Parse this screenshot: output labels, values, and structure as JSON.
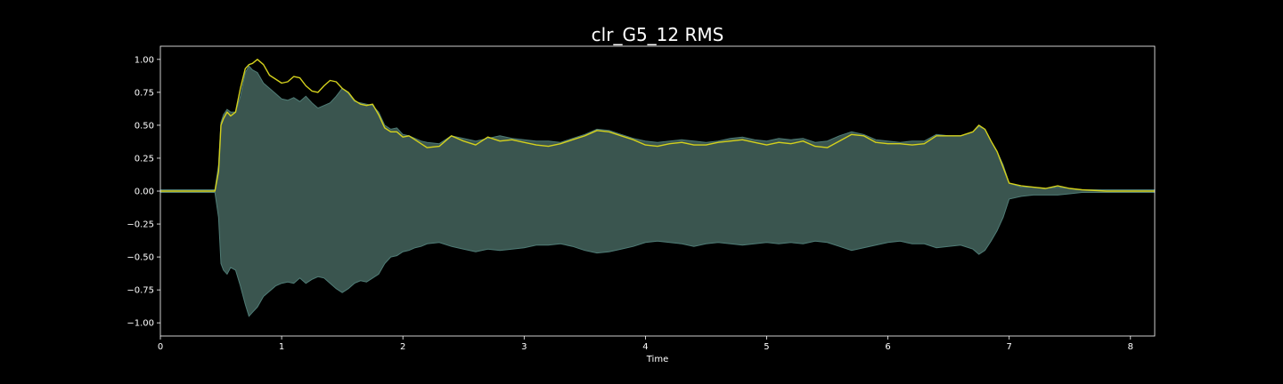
{
  "chart_data": {
    "type": "area",
    "title": "clr_G5_12 RMS",
    "xlabel": "Time",
    "ylabel": "",
    "xlim": [
      0,
      8.2
    ],
    "ylim": [
      -1.1,
      1.1
    ],
    "x_ticks": [
      "0",
      "1",
      "2",
      "3",
      "4",
      "5",
      "6",
      "7",
      "8"
    ],
    "y_ticks": [
      "1.00",
      "0.75",
      "0.50",
      "0.25",
      "0.00",
      "−0.25",
      "−0.50",
      "−0.75",
      "−1.00"
    ],
    "grid": false,
    "legend": "none",
    "colors": {
      "background": "#000000",
      "waveform": "#3a554f",
      "waveform_edge": "#4f7c76",
      "rms": "#d4d11c",
      "axes": "#ffffff",
      "text": "#ffffff"
    },
    "series": [
      {
        "kind": "waveform-envelope",
        "x": [
          0,
          0.45,
          0.48,
          0.5,
          0.52,
          0.55,
          0.58,
          0.62,
          0.66,
          0.7,
          0.73,
          0.76,
          0.8,
          0.85,
          0.9,
          0.95,
          1.0,
          1.05,
          1.1,
          1.15,
          1.2,
          1.25,
          1.3,
          1.35,
          1.4,
          1.45,
          1.5,
          1.55,
          1.6,
          1.65,
          1.7,
          1.75,
          1.8,
          1.85,
          1.9,
          1.95,
          2.0,
          2.05,
          2.1,
          2.15,
          2.2,
          2.3,
          2.4,
          2.5,
          2.6,
          2.7,
          2.8,
          2.9,
          3.0,
          3.1,
          3.2,
          3.3,
          3.4,
          3.5,
          3.6,
          3.7,
          3.8,
          3.9,
          4.0,
          4.1,
          4.2,
          4.3,
          4.4,
          4.5,
          4.6,
          4.7,
          4.8,
          4.9,
          5.0,
          5.1,
          5.2,
          5.3,
          5.4,
          5.5,
          5.6,
          5.7,
          5.8,
          5.9,
          6.0,
          6.1,
          6.2,
          6.3,
          6.4,
          6.5,
          6.6,
          6.7,
          6.75,
          6.8,
          6.85,
          6.9,
          6.95,
          7.0,
          7.1,
          7.2,
          7.3,
          7.4,
          7.5,
          7.6,
          7.8,
          8.0,
          8.2
        ],
        "upper": [
          0.01,
          0.01,
          0.2,
          0.52,
          0.58,
          0.62,
          0.6,
          0.6,
          0.72,
          0.9,
          0.95,
          0.92,
          0.9,
          0.82,
          0.78,
          0.74,
          0.7,
          0.69,
          0.71,
          0.68,
          0.72,
          0.67,
          0.63,
          0.65,
          0.67,
          0.72,
          0.78,
          0.74,
          0.68,
          0.67,
          0.66,
          0.65,
          0.6,
          0.5,
          0.47,
          0.48,
          0.43,
          0.42,
          0.4,
          0.38,
          0.37,
          0.36,
          0.42,
          0.4,
          0.38,
          0.4,
          0.42,
          0.4,
          0.39,
          0.38,
          0.38,
          0.37,
          0.4,
          0.43,
          0.47,
          0.46,
          0.43,
          0.4,
          0.38,
          0.37,
          0.38,
          0.39,
          0.38,
          0.37,
          0.38,
          0.4,
          0.41,
          0.39,
          0.38,
          0.4,
          0.39,
          0.4,
          0.37,
          0.38,
          0.42,
          0.45,
          0.43,
          0.39,
          0.38,
          0.37,
          0.38,
          0.38,
          0.43,
          0.42,
          0.42,
          0.45,
          0.49,
          0.47,
          0.38,
          0.3,
          0.2,
          0.06,
          0.03,
          0.03,
          0.02,
          0.03,
          0.02,
          0.01,
          0.01,
          0.01,
          0.01
        ],
        "lower": [
          -0.01,
          -0.01,
          -0.2,
          -0.55,
          -0.6,
          -0.63,
          -0.58,
          -0.6,
          -0.72,
          -0.86,
          -0.95,
          -0.92,
          -0.88,
          -0.8,
          -0.76,
          -0.72,
          -0.7,
          -0.69,
          -0.7,
          -0.66,
          -0.7,
          -0.67,
          -0.65,
          -0.66,
          -0.7,
          -0.74,
          -0.77,
          -0.74,
          -0.7,
          -0.68,
          -0.69,
          -0.66,
          -0.63,
          -0.55,
          -0.5,
          -0.49,
          -0.46,
          -0.45,
          -0.43,
          -0.42,
          -0.4,
          -0.39,
          -0.42,
          -0.44,
          -0.46,
          -0.44,
          -0.45,
          -0.44,
          -0.43,
          -0.41,
          -0.41,
          -0.4,
          -0.42,
          -0.45,
          -0.47,
          -0.46,
          -0.44,
          -0.42,
          -0.39,
          -0.38,
          -0.39,
          -0.4,
          -0.42,
          -0.4,
          -0.39,
          -0.4,
          -0.41,
          -0.4,
          -0.39,
          -0.4,
          -0.39,
          -0.4,
          -0.38,
          -0.39,
          -0.42,
          -0.45,
          -0.43,
          -0.41,
          -0.39,
          -0.38,
          -0.4,
          -0.4,
          -0.43,
          -0.42,
          -0.41,
          -0.44,
          -0.48,
          -0.45,
          -0.38,
          -0.3,
          -0.2,
          -0.06,
          -0.04,
          -0.03,
          -0.03,
          -0.03,
          -0.02,
          -0.01,
          -0.01,
          -0.01,
          -0.01
        ]
      },
      {
        "kind": "rms-line",
        "x": [
          0,
          0.45,
          0.48,
          0.5,
          0.52,
          0.55,
          0.58,
          0.62,
          0.66,
          0.7,
          0.73,
          0.76,
          0.8,
          0.85,
          0.9,
          0.95,
          1.0,
          1.05,
          1.1,
          1.15,
          1.2,
          1.25,
          1.3,
          1.35,
          1.4,
          1.45,
          1.5,
          1.55,
          1.6,
          1.65,
          1.7,
          1.75,
          1.8,
          1.85,
          1.9,
          1.95,
          2.0,
          2.05,
          2.1,
          2.15,
          2.2,
          2.3,
          2.4,
          2.5,
          2.6,
          2.7,
          2.8,
          2.9,
          3.0,
          3.1,
          3.2,
          3.3,
          3.4,
          3.5,
          3.6,
          3.7,
          3.8,
          3.9,
          4.0,
          4.1,
          4.2,
          4.3,
          4.4,
          4.5,
          4.6,
          4.7,
          4.8,
          4.9,
          5.0,
          5.1,
          5.2,
          5.3,
          5.4,
          5.5,
          5.6,
          5.7,
          5.8,
          5.9,
          6.0,
          6.1,
          6.2,
          6.3,
          6.4,
          6.5,
          6.6,
          6.7,
          6.75,
          6.8,
          6.85,
          6.9,
          6.95,
          7.0,
          7.1,
          7.2,
          7.3,
          7.4,
          7.5,
          7.6,
          7.8,
          8.0,
          8.2
        ],
        "values": [
          0.0,
          0.0,
          0.15,
          0.5,
          0.55,
          0.6,
          0.57,
          0.6,
          0.78,
          0.93,
          0.96,
          0.97,
          1.0,
          0.96,
          0.88,
          0.85,
          0.82,
          0.83,
          0.87,
          0.86,
          0.8,
          0.76,
          0.75,
          0.8,
          0.84,
          0.83,
          0.78,
          0.75,
          0.69,
          0.66,
          0.65,
          0.66,
          0.58,
          0.48,
          0.45,
          0.45,
          0.41,
          0.42,
          0.39,
          0.36,
          0.33,
          0.34,
          0.42,
          0.38,
          0.35,
          0.41,
          0.38,
          0.39,
          0.37,
          0.35,
          0.34,
          0.36,
          0.39,
          0.42,
          0.46,
          0.45,
          0.42,
          0.39,
          0.35,
          0.34,
          0.36,
          0.37,
          0.35,
          0.35,
          0.37,
          0.38,
          0.39,
          0.37,
          0.35,
          0.37,
          0.36,
          0.38,
          0.34,
          0.33,
          0.38,
          0.43,
          0.42,
          0.37,
          0.36,
          0.36,
          0.35,
          0.36,
          0.42,
          0.42,
          0.42,
          0.45,
          0.5,
          0.47,
          0.38,
          0.3,
          0.18,
          0.06,
          0.04,
          0.03,
          0.02,
          0.04,
          0.02,
          0.01,
          0.0,
          0.0,
          0.0
        ]
      }
    ]
  }
}
